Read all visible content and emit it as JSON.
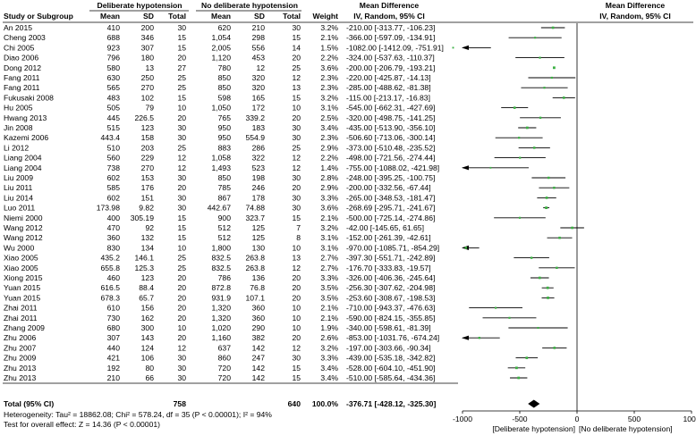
{
  "headers": {
    "group1": "Deliberate hypotension",
    "group2": "No deliberate hypotension",
    "md": "Mean Difference",
    "md_plot": "Mean Difference",
    "study": "Study or Subgroup",
    "mean": "Mean",
    "sd": "SD",
    "total": "Total",
    "weight": "Weight",
    "method": "IV, Random, 95% CI",
    "method_plot": "IV, Random, 95% CI"
  },
  "studies": [
    {
      "name": "An 2015",
      "m1": "410",
      "sd1": "200",
      "n1": "30",
      "m2": "620",
      "sd2": "210",
      "n2": "30",
      "weight": "3.2%",
      "ci": "-210.00 [-313.77, -106.23]",
      "md": -210.0,
      "lo": -313.77,
      "hi": -106.23
    },
    {
      "name": "Cheng 2003",
      "m1": "688",
      "sd1": "346",
      "n1": "15",
      "m2": "1,054",
      "sd2": "298",
      "n2": "15",
      "weight": "2.1%",
      "ci": "-366.00 [-597.09, -134.91]",
      "md": -366.0,
      "lo": -597.09,
      "hi": -134.91
    },
    {
      "name": "Chi 2005",
      "m1": "923",
      "sd1": "307",
      "n1": "15",
      "m2": "2,005",
      "sd2": "556",
      "n2": "14",
      "weight": "1.5%",
      "ci": "-1082.00 [-1412.09, -751.91]",
      "md": -1082.0,
      "lo": -1412.09,
      "hi": -751.91
    },
    {
      "name": "Diao 2006",
      "m1": "796",
      "sd1": "180",
      "n1": "20",
      "m2": "1,120",
      "sd2": "453",
      "n2": "20",
      "weight": "2.2%",
      "ci": "-324.00 [-537.63, -110.37]",
      "md": -324.0,
      "lo": -537.63,
      "hi": -110.37
    },
    {
      "name": "Dong 2012",
      "m1": "580",
      "sd1": "13",
      "n1": "27",
      "m2": "780",
      "sd2": "12",
      "n2": "25",
      "weight": "3.6%",
      "ci": "-200.00 [-206.79, -193.21]",
      "md": -200.0,
      "lo": -206.79,
      "hi": -193.21
    },
    {
      "name": "Fang 2011",
      "m1": "630",
      "sd1": "250",
      "n1": "25",
      "m2": "850",
      "sd2": "320",
      "n2": "12",
      "weight": "2.3%",
      "ci": "-220.00 [-425.87, -14.13]",
      "md": -220.0,
      "lo": -425.87,
      "hi": -14.13
    },
    {
      "name": "Fang 2011",
      "m1": "565",
      "sd1": "270",
      "n1": "25",
      "m2": "850",
      "sd2": "320",
      "n2": "13",
      "weight": "2.3%",
      "ci": "-285.00 [-488.62, -81.38]",
      "md": -285.0,
      "lo": -488.62,
      "hi": -81.38
    },
    {
      "name": "Fukusaki 2008",
      "m1": "483",
      "sd1": "102",
      "n1": "15",
      "m2": "598",
      "sd2": "165",
      "n2": "15",
      "weight": "3.2%",
      "ci": "-115.00 [-213.17, -16.83]",
      "md": -115.0,
      "lo": -213.17,
      "hi": -16.83
    },
    {
      "name": "Hu 2005",
      "m1": "505",
      "sd1": "79",
      "n1": "10",
      "m2": "1,050",
      "sd2": "172",
      "n2": "10",
      "weight": "3.1%",
      "ci": "-545.00 [-662.31, -427.69]",
      "md": -545.0,
      "lo": -662.31,
      "hi": -427.69
    },
    {
      "name": "Hwang 2013",
      "m1": "445",
      "sd1": "226.5",
      "n1": "20",
      "m2": "765",
      "sd2": "339.2",
      "n2": "20",
      "weight": "2.5%",
      "ci": "-320.00 [-498.75, -141.25]",
      "md": -320.0,
      "lo": -498.75,
      "hi": -141.25
    },
    {
      "name": "Jin 2008",
      "m1": "515",
      "sd1": "123",
      "n1": "30",
      "m2": "950",
      "sd2": "183",
      "n2": "30",
      "weight": "3.4%",
      "ci": "-435.00 [-513.90, -356.10]",
      "md": -435.0,
      "lo": -513.9,
      "hi": -356.1
    },
    {
      "name": "Kazemi 2006",
      "m1": "443.4",
      "sd1": "158",
      "n1": "30",
      "m2": "950",
      "sd2": "554.9",
      "n2": "30",
      "weight": "2.3%",
      "ci": "-506.60 [-713.06, -300.14]",
      "md": -506.6,
      "lo": -713.06,
      "hi": -300.14
    },
    {
      "name": "Li 2012",
      "m1": "510",
      "sd1": "203",
      "n1": "25",
      "m2": "883",
      "sd2": "286",
      "n2": "25",
      "weight": "2.9%",
      "ci": "-373.00 [-510.48, -235.52]",
      "md": -373.0,
      "lo": -510.48,
      "hi": -235.52
    },
    {
      "name": "Liang 2004",
      "m1": "560",
      "sd1": "229",
      "n1": "12",
      "m2": "1,058",
      "sd2": "322",
      "n2": "12",
      "weight": "2.2%",
      "ci": "-498.00 [-721.56, -274.44]",
      "md": -498.0,
      "lo": -721.56,
      "hi": -274.44
    },
    {
      "name": "Liang 2004",
      "m1": "738",
      "sd1": "270",
      "n1": "12",
      "m2": "1,493",
      "sd2": "523",
      "n2": "12",
      "weight": "1.4%",
      "ci": "-755.00 [-1088.02, -421.98]",
      "md": -755.0,
      "lo": -1088.02,
      "hi": -421.98
    },
    {
      "name": "Liu 2009",
      "m1": "602",
      "sd1": "153",
      "n1": "30",
      "m2": "850",
      "sd2": "198",
      "n2": "30",
      "weight": "2.8%",
      "ci": "-248.00 [-395.25, -100.75]",
      "md": -248.0,
      "lo": -395.25,
      "hi": -100.75
    },
    {
      "name": "Liu 2011",
      "m1": "585",
      "sd1": "176",
      "n1": "20",
      "m2": "785",
      "sd2": "246",
      "n2": "20",
      "weight": "2.9%",
      "ci": "-200.00 [-332.56, -67.44]",
      "md": -200.0,
      "lo": -332.56,
      "hi": -67.44
    },
    {
      "name": "Liu 2014",
      "m1": "602",
      "sd1": "151",
      "n1": "30",
      "m2": "867",
      "sd2": "178",
      "n2": "30",
      "weight": "3.3%",
      "ci": "-265.00 [-348.53, -181.47]",
      "md": -265.0,
      "lo": -348.53,
      "hi": -181.47
    },
    {
      "name": "Luo 2011",
      "m1": "173.98",
      "sd1": "9.82",
      "n1": "30",
      "m2": "442.67",
      "sd2": "74.88",
      "n2": "30",
      "weight": "3.6%",
      "ci": "-268.69 [-295.71, -241.67]",
      "md": -268.69,
      "lo": -295.71,
      "hi": -241.67
    },
    {
      "name": "Niemi 2000",
      "m1": "400",
      "sd1": "305.19",
      "n1": "15",
      "m2": "900",
      "sd2": "323.7",
      "n2": "15",
      "weight": "2.1%",
      "ci": "-500.00 [-725.14, -274.86]",
      "md": -500.0,
      "lo": -725.14,
      "hi": -274.86
    },
    {
      "name": "Wang 2012",
      "m1": "470",
      "sd1": "92",
      "n1": "15",
      "m2": "512",
      "sd2": "125",
      "n2": "7",
      "weight": "3.2%",
      "ci": "-42.00 [-145.65, 61.65]",
      "md": -42.0,
      "lo": -145.65,
      "hi": 61.65
    },
    {
      "name": "Wang 2012",
      "m1": "360",
      "sd1": "132",
      "n1": "15",
      "m2": "512",
      "sd2": "125",
      "n2": "8",
      "weight": "3.1%",
      "ci": "-152.00 [-261.39, -42.61]",
      "md": -152.0,
      "lo": -261.39,
      "hi": -42.61
    },
    {
      "name": "Wu 2000",
      "m1": "830",
      "sd1": "134",
      "n1": "10",
      "m2": "1,800",
      "sd2": "130",
      "n2": "10",
      "weight": "3.1%",
      "ci": "-970.00 [-1085.71, -854.29]",
      "md": -970.0,
      "lo": -1085.71,
      "hi": -854.29
    },
    {
      "name": "Xiao 2005",
      "m1": "435.2",
      "sd1": "146.1",
      "n1": "25",
      "m2": "832.5",
      "sd2": "263.8",
      "n2": "13",
      "weight": "2.7%",
      "ci": "-397.30 [-551.71, -242.89]",
      "md": -397.3,
      "lo": -551.71,
      "hi": -242.89
    },
    {
      "name": "Xiao 2005",
      "m1": "655.8",
      "sd1": "125.3",
      "n1": "25",
      "m2": "832.5",
      "sd2": "263.8",
      "n2": "12",
      "weight": "2.7%",
      "ci": "-176.70 [-333.83, -19.57]",
      "md": -176.7,
      "lo": -333.83,
      "hi": -19.57
    },
    {
      "name": "Xiong 2015",
      "m1": "460",
      "sd1": "123",
      "n1": "20",
      "m2": "786",
      "sd2": "136",
      "n2": "20",
      "weight": "3.3%",
      "ci": "-326.00 [-406.36, -245.64]",
      "md": -326.0,
      "lo": -406.36,
      "hi": -245.64
    },
    {
      "name": "Yuan 2015",
      "m1": "616.5",
      "sd1": "88.4",
      "n1": "20",
      "m2": "872.8",
      "sd2": "76.8",
      "n2": "20",
      "weight": "3.5%",
      "ci": "-256.30 [-307.62, -204.98]",
      "md": -256.3,
      "lo": -307.62,
      "hi": -204.98
    },
    {
      "name": "Yuan 2015",
      "m1": "678.3",
      "sd1": "65.7",
      "n1": "20",
      "m2": "931.9",
      "sd2": "107.1",
      "n2": "20",
      "weight": "3.5%",
      "ci": "-253.60 [-308.67, -198.53]",
      "md": -253.6,
      "lo": -308.67,
      "hi": -198.53
    },
    {
      "name": "Zhai 2011",
      "m1": "610",
      "sd1": "156",
      "n1": "20",
      "m2": "1,320",
      "sd2": "360",
      "n2": "10",
      "weight": "2.1%",
      "ci": "-710.00 [-943.37, -476.63]",
      "md": -710.0,
      "lo": -943.37,
      "hi": -476.63
    },
    {
      "name": "Zhai 2011",
      "m1": "730",
      "sd1": "162",
      "n1": "20",
      "m2": "1,320",
      "sd2": "360",
      "n2": "10",
      "weight": "2.1%",
      "ci": "-590.00 [-824.15, -355.85]",
      "md": -590.0,
      "lo": -824.15,
      "hi": -355.85
    },
    {
      "name": "Zhang 2009",
      "m1": "680",
      "sd1": "300",
      "n1": "10",
      "m2": "1,020",
      "sd2": "290",
      "n2": "10",
      "weight": "1.9%",
      "ci": "-340.00 [-598.61, -81.39]",
      "md": -340.0,
      "lo": -598.61,
      "hi": -81.39
    },
    {
      "name": "Zhu 2006",
      "m1": "307",
      "sd1": "143",
      "n1": "20",
      "m2": "1,160",
      "sd2": "382",
      "n2": "20",
      "weight": "2.6%",
      "ci": "-853.00 [-1031.76, -674.24]",
      "md": -853.0,
      "lo": -1031.76,
      "hi": -674.24
    },
    {
      "name": "Zhu 2007",
      "m1": "440",
      "sd1": "124",
      "n1": "12",
      "m2": "637",
      "sd2": "142",
      "n2": "12",
      "weight": "3.2%",
      "ci": "-197.00 [-303.66, -90.34]",
      "md": -197.0,
      "lo": -303.66,
      "hi": -90.34
    },
    {
      "name": "Zhu 2009",
      "m1": "421",
      "sd1": "106",
      "n1": "30",
      "m2": "860",
      "sd2": "247",
      "n2": "30",
      "weight": "3.3%",
      "ci": "-439.00 [-535.18, -342.82]",
      "md": -439.0,
      "lo": -535.18,
      "hi": -342.82
    },
    {
      "name": "Zhu 2013",
      "m1": "192",
      "sd1": "80",
      "n1": "30",
      "m2": "720",
      "sd2": "142",
      "n2": "15",
      "weight": "3.4%",
      "ci": "-528.00 [-604.10, -451.90]",
      "md": -528.0,
      "lo": -604.1,
      "hi": -451.9
    },
    {
      "name": "Zhu 2013",
      "m1": "210",
      "sd1": "66",
      "n1": "30",
      "m2": "720",
      "sd2": "142",
      "n2": "15",
      "weight": "3.4%",
      "ci": "-510.00 [-585.64, -434.36]",
      "md": -510.0,
      "lo": -585.64,
      "hi": -434.36
    }
  ],
  "total": {
    "label": "Total (95% CI)",
    "n1": "758",
    "n2": "640",
    "weight": "100.0%",
    "ci": "-376.71 [-428.12, -325.30]",
    "md": -376.71,
    "lo": -428.12,
    "hi": -325.3
  },
  "footer": {
    "heterogeneity": "Heterogeneity: Tau² = 18862.08; Chi² = 578.24, df = 35 (P < 0.00001); I² = 94%",
    "overall": "Test for overall effect: Z = 14.36 (P < 0.00001)"
  },
  "axis": {
    "ticks": [
      "-1000",
      "-500",
      "0",
      "500",
      "1000"
    ],
    "left_label": "[Deliberate hypotension]",
    "right_label": "[No deliberate hypotension]"
  },
  "colors": {
    "marker": "#3cb043",
    "line": "#000000",
    "rule": "#000000"
  },
  "chart_data": {
    "type": "forest",
    "title": "",
    "xlabel": "Mean Difference IV, Random, 95% CI",
    "xlim": [
      -1000,
      1000
    ],
    "xticks": [
      -1000,
      -500,
      0,
      500,
      1000
    ],
    "grid": false,
    "legend": "none"
  }
}
